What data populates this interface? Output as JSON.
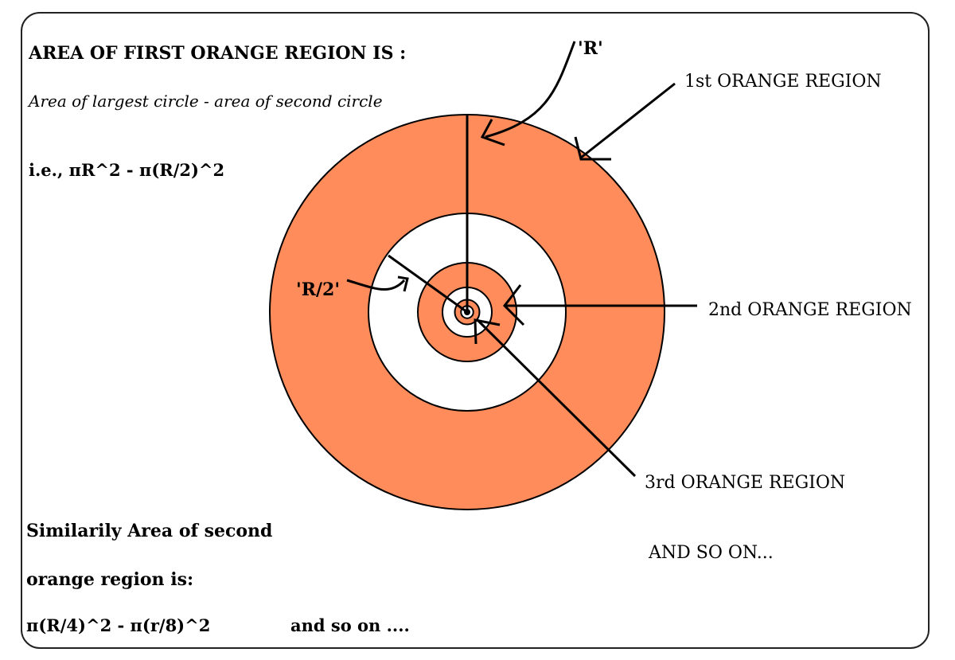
{
  "text": {
    "title": "AREA OF FIRST ORANGE REGION IS :",
    "subtitle": "Area of largest circle - area of second circle",
    "formula1": "i.e., πR^2 - π(R/2)^2",
    "similar_line1": "Similarily Area of second",
    "similar_line2": "orange region is:",
    "formula2": "π(R/4)^2 - π(r/8)^2",
    "and_so_on_small": "and so on ...."
  },
  "labels": {
    "radius_R": "'R'",
    "radius_R_half": "'R/2'",
    "first_region": "1st ORANGE REGION",
    "second_region": "2nd ORANGE REGION",
    "third_region": "3rd ORANGE REGION",
    "and_so_on": "AND SO ON..."
  },
  "colors": {
    "orange_fill": "#ff8c5a",
    "white_fill": "#ffffff",
    "stroke": "#000000"
  }
}
